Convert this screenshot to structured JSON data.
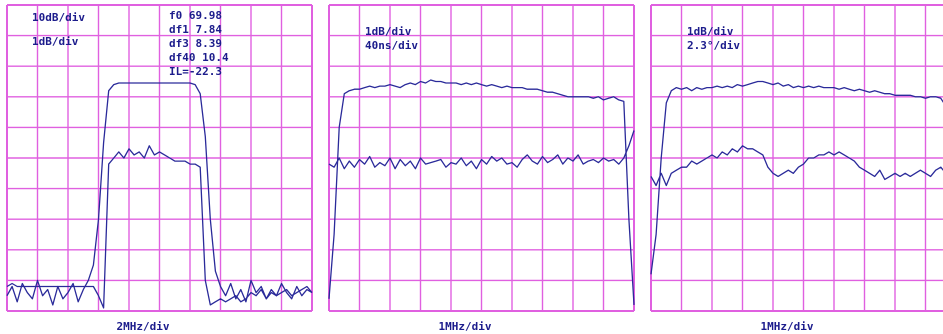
{
  "colors": {
    "grid": "#e060e0",
    "trace": "#2a2a9a",
    "text": "#1c1c8c",
    "background": "#ffffff"
  },
  "panels": [
    {
      "top_labels": [
        "10dB/div",
        "1dB/div"
      ],
      "info_lines": [
        "f0 69.98",
        "df1 7.84",
        "df3 8.39",
        "df40 10.4",
        "IL=-22.3"
      ],
      "x_label": "2MHz/div"
    },
    {
      "top_labels": [
        "1dB/div",
        "40ns/div"
      ],
      "info_lines": [],
      "x_label": "1MHz/div"
    },
    {
      "top_labels": [
        "1dB/div",
        "2.3°/div"
      ],
      "info_lines": [],
      "x_label": "1MHz/div"
    }
  ],
  "chart_data": [
    {
      "type": "line",
      "grid": true,
      "grid_divisions": {
        "x": 10,
        "y": 10
      },
      "series": [
        {
          "values": [
            9.5,
            9.2,
            9.7,
            9.1,
            9.4,
            9.6,
            9.0,
            9.5,
            9.3,
            9.8,
            9.2,
            9.6,
            9.4,
            9.1,
            9.7,
            9.3,
            9.0,
            8.5,
            7.0,
            4.5,
            2.8,
            2.6,
            2.55,
            2.55,
            2.55,
            2.55,
            2.55,
            2.55,
            2.55,
            2.55,
            2.55,
            2.55,
            2.55,
            2.55,
            2.55,
            2.55,
            2.55,
            2.6,
            2.9,
            4.3,
            7.0,
            8.7,
            9.2,
            9.5,
            9.1,
            9.6,
            9.3,
            9.7,
            9.0,
            9.4,
            9.2,
            9.6,
            9.3,
            9.5,
            9.1,
            9.4,
            9.6,
            9.2,
            9.5,
            9.3,
            9.4
          ]
        },
        {
          "values": [
            9.2,
            9.1,
            9.2,
            9.2,
            9.2,
            9.2,
            9.2,
            9.2,
            9.2,
            9.2,
            9.2,
            9.2,
            9.2,
            9.2,
            9.2,
            9.2,
            9.2,
            9.2,
            9.5,
            9.9,
            5.2,
            5.0,
            4.8,
            5.0,
            4.7,
            4.9,
            4.8,
            5.0,
            4.6,
            4.9,
            4.8,
            4.9,
            5.0,
            5.1,
            5.1,
            5.1,
            5.2,
            5.2,
            5.3,
            9.0,
            9.8,
            9.7,
            9.6,
            9.7,
            9.6,
            9.5,
            9.7,
            9.6,
            9.4,
            9.5,
            9.3,
            9.6,
            9.4,
            9.5,
            9.4,
            9.3,
            9.5,
            9.4,
            9.3,
            9.2,
            9.4
          ]
        }
      ]
    },
    {
      "type": "line",
      "grid": true,
      "grid_divisions": {
        "x": 10,
        "y": 10
      },
      "series": [
        {
          "values": [
            9.6,
            7.5,
            4.0,
            2.9,
            2.8,
            2.75,
            2.75,
            2.7,
            2.65,
            2.7,
            2.65,
            2.65,
            2.6,
            2.65,
            2.7,
            2.6,
            2.55,
            2.6,
            2.5,
            2.55,
            2.45,
            2.5,
            2.5,
            2.55,
            2.55,
            2.55,
            2.6,
            2.55,
            2.6,
            2.55,
            2.6,
            2.65,
            2.6,
            2.65,
            2.7,
            2.65,
            2.7,
            2.7,
            2.7,
            2.75,
            2.75,
            2.75,
            2.8,
            2.85,
            2.85,
            2.9,
            2.95,
            3.0,
            3.0,
            3.0,
            3.0,
            3.0,
            3.05,
            3.0,
            3.1,
            3.05,
            3.0,
            3.1,
            3.15,
            7.0,
            9.8
          ]
        },
        {
          "values": [
            5.2,
            5.3,
            5.0,
            5.35,
            5.1,
            5.3,
            5.05,
            5.2,
            4.95,
            5.3,
            5.15,
            5.25,
            5.0,
            5.35,
            5.05,
            5.25,
            5.1,
            5.35,
            5.0,
            5.2,
            5.15,
            5.1,
            5.05,
            5.3,
            5.15,
            5.2,
            5.0,
            5.25,
            5.1,
            5.35,
            5.05,
            5.2,
            4.95,
            5.1,
            5.0,
            5.2,
            5.15,
            5.3,
            5.05,
            4.9,
            5.1,
            5.2,
            4.95,
            5.15,
            5.05,
            4.9,
            5.2,
            5.0,
            5.1,
            4.9,
            5.2,
            5.1,
            5.05,
            5.15,
            5.0,
            5.1,
            5.05,
            5.2,
            5.0,
            4.6,
            4.1
          ]
        }
      ]
    },
    {
      "type": "line",
      "grid": true,
      "grid_divisions": {
        "x": 10,
        "y": 10
      },
      "series": [
        {
          "values": [
            8.8,
            7.5,
            5.0,
            3.2,
            2.8,
            2.7,
            2.75,
            2.7,
            2.8,
            2.7,
            2.75,
            2.7,
            2.7,
            2.65,
            2.7,
            2.65,
            2.7,
            2.6,
            2.65,
            2.6,
            2.55,
            2.5,
            2.5,
            2.55,
            2.6,
            2.55,
            2.65,
            2.6,
            2.7,
            2.65,
            2.7,
            2.65,
            2.7,
            2.65,
            2.7,
            2.7,
            2.7,
            2.75,
            2.7,
            2.75,
            2.8,
            2.75,
            2.8,
            2.85,
            2.8,
            2.85,
            2.9,
            2.9,
            2.95,
            2.95,
            2.95,
            2.95,
            3.0,
            3.0,
            3.05,
            3.0,
            3.0,
            3.05,
            3.3,
            5.5,
            8.9
          ]
        },
        {
          "values": [
            5.6,
            5.9,
            5.5,
            5.9,
            5.5,
            5.4,
            5.3,
            5.3,
            5.1,
            5.2,
            5.1,
            5.0,
            4.9,
            5.0,
            4.8,
            4.9,
            4.7,
            4.8,
            4.6,
            4.7,
            4.7,
            4.8,
            4.9,
            5.3,
            5.5,
            5.6,
            5.5,
            5.4,
            5.5,
            5.3,
            5.2,
            5.0,
            5.0,
            4.9,
            4.9,
            4.8,
            4.9,
            4.8,
            4.9,
            5.0,
            5.1,
            5.3,
            5.4,
            5.5,
            5.6,
            5.4,
            5.7,
            5.6,
            5.5,
            5.6,
            5.5,
            5.6,
            5.5,
            5.4,
            5.5,
            5.6,
            5.4,
            5.3,
            5.5,
            5.6,
            5.6
          ]
        }
      ]
    }
  ]
}
